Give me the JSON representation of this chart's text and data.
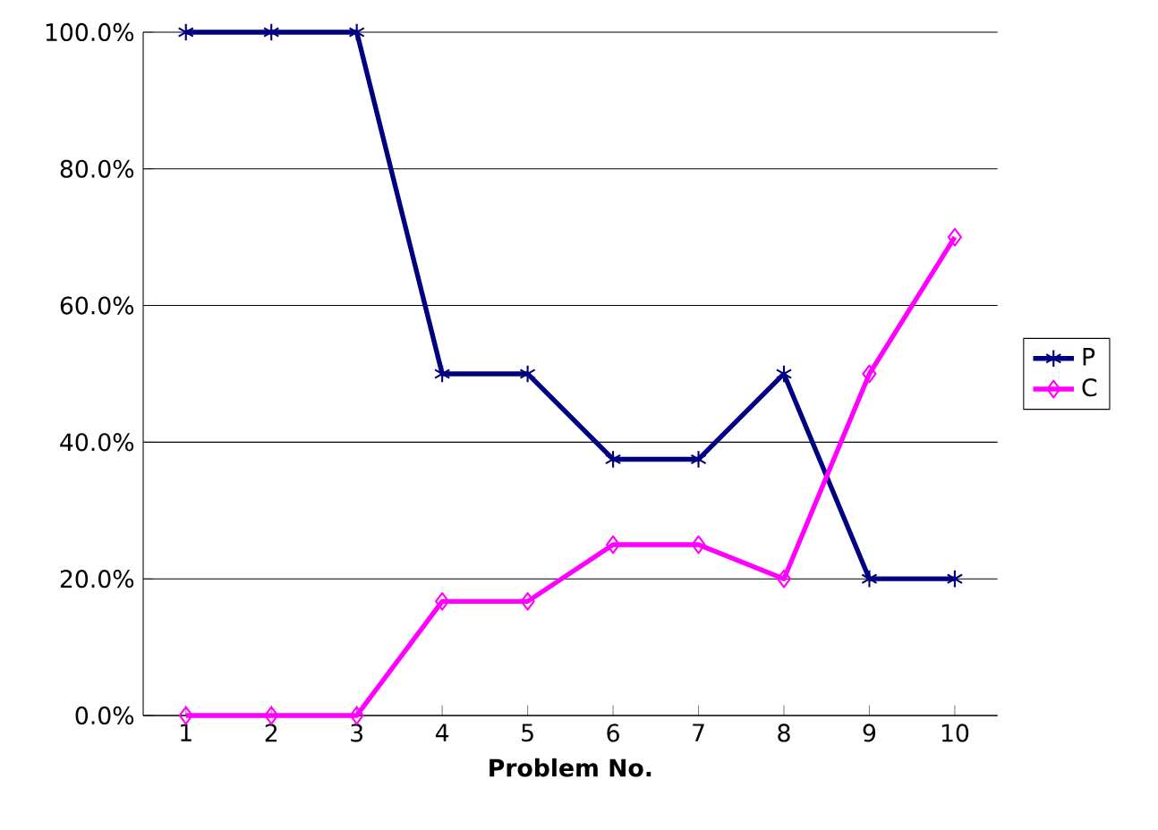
{
  "chart_data": {
    "type": "line",
    "xlabel": "Problem No.",
    "categories": [
      "1",
      "2",
      "3",
      "4",
      "5",
      "6",
      "7",
      "8",
      "9",
      "10"
    ],
    "series": [
      {
        "name": "P",
        "color": "#000080",
        "marker": "cross",
        "values": [
          100,
          100,
          100,
          50,
          50,
          37.5,
          37.5,
          50,
          20,
          20
        ]
      },
      {
        "name": "C",
        "color": "#ff00ff",
        "marker": "diamond",
        "values": [
          0,
          0,
          0,
          16.7,
          16.7,
          25,
          25,
          20,
          50,
          70
        ]
      }
    ],
    "ylim": [
      0,
      100
    ],
    "yticks": [
      {
        "value": 0,
        "label": "0.0%"
      },
      {
        "value": 20,
        "label": "20.0%"
      },
      {
        "value": 40,
        "label": "40.0%"
      },
      {
        "value": 60,
        "label": "60.0%"
      },
      {
        "value": 80,
        "label": "80.0%"
      },
      {
        "value": 100,
        "label": "100.0%"
      }
    ],
    "grid": "y",
    "legend": "right",
    "line_style": "solid"
  }
}
